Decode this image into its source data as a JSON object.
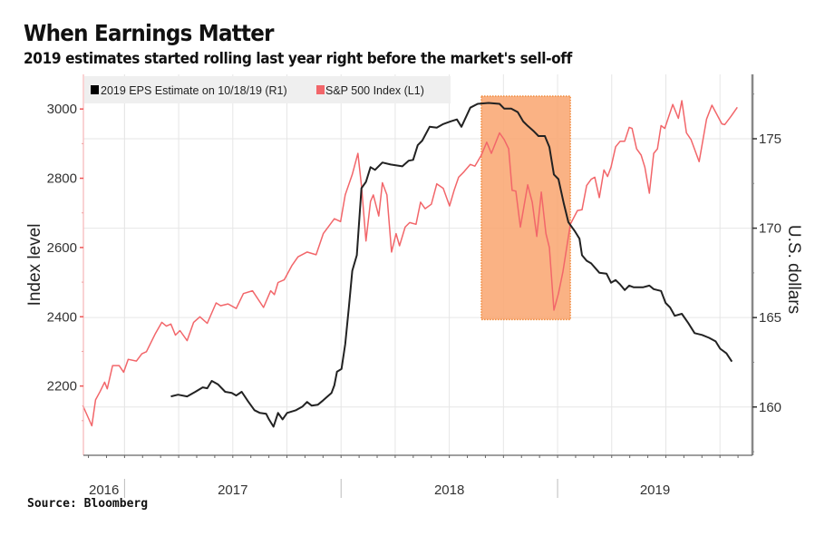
{
  "header": {
    "title": "When Earnings Matter",
    "subtitle": "2019 estimates started rolling last year right before the market's sell-off"
  },
  "footer": {
    "source": "Source: Bloomberg"
  },
  "colors": {
    "sp500": "#f2666a",
    "eps": "#222222",
    "highlight_fill": "#f9a56f",
    "highlight_border": "#f08a3c",
    "left_axis": "#f7b6b8",
    "right_axis": "#888888",
    "grid": "#e6e6e6",
    "legend_bg": "#efefef"
  },
  "chart_data": {
    "type": "line",
    "title": "When Earnings Matter",
    "subtitle": "2019 estimates started rolling last year right before the market's sell-off",
    "xlabel": "",
    "x_unit": "decimal year",
    "x_range": [
      2016.81,
      2019.9
    ],
    "x_ticks": [
      {
        "label": "2016",
        "start": 2016.81,
        "end": 2017.0
      },
      {
        "label": "2017",
        "start": 2017.0,
        "end": 2018.0
      },
      {
        "label": "2018",
        "start": 2018.0,
        "end": 2019.0
      },
      {
        "label": "2019",
        "start": 2019.0,
        "end": 2019.9
      }
    ],
    "y_left": {
      "label": "Index level",
      "range": [
        2000,
        3100
      ],
      "ticks": [
        2200,
        2400,
        2600,
        2800,
        3000
      ]
    },
    "y_right": {
      "label": "U.S. dollars",
      "range": [
        157.3,
        178.6
      ],
      "ticks": [
        160,
        165,
        170,
        175
      ]
    },
    "grid": true,
    "legend_position": "top-left",
    "legend": [
      {
        "label": "2019 EPS Estimate  on 10/18/19 (R1)",
        "series": "eps"
      },
      {
        "label": "S&P 500 Index  (L1)",
        "series": "sp500"
      }
    ],
    "highlight": {
      "x_start": 2018.648,
      "x_end": 2019.059,
      "y_top_left": 3037,
      "y_bottom_left": 2392
    },
    "series": [
      {
        "name": "S&P 500 Index (L1)",
        "key": "sp500",
        "axis": "left",
        "x": [
          2016.807,
          2016.849,
          2016.866,
          2016.887,
          2016.908,
          2016.92,
          2016.945,
          2016.975,
          2016.996,
          2017.017,
          2017.055,
          2017.08,
          2017.101,
          2017.143,
          2017.172,
          2017.193,
          2017.214,
          2017.235,
          2017.256,
          2017.289,
          2017.319,
          2017.348,
          2017.382,
          2017.423,
          2017.444,
          2017.478,
          2017.516,
          2017.549,
          2017.591,
          2017.642,
          2017.675,
          2017.692,
          2017.709,
          2017.738,
          2017.772,
          2017.801,
          2017.843,
          2017.885,
          2017.918,
          2017.969,
          2017.998,
          2018.019,
          2018.052,
          2018.078,
          2018.094,
          2018.115,
          2018.136,
          2018.149,
          2018.174,
          2018.191,
          2018.212,
          2018.233,
          2018.254,
          2018.27,
          2018.296,
          2018.317,
          2018.346,
          2018.367,
          2018.388,
          2018.417,
          2018.442,
          2018.472,
          2018.501,
          2018.522,
          2018.543,
          2018.568,
          2018.597,
          2018.618,
          2018.648,
          2018.673,
          2018.694,
          2018.732,
          2018.753,
          2018.774,
          2018.79,
          2018.807,
          2018.828,
          2018.862,
          2018.883,
          2018.904,
          2018.925,
          2018.946,
          2018.962,
          2018.983,
          2019.004,
          2019.025,
          2019.059,
          2019.092,
          2019.113,
          2019.134,
          2019.155,
          2019.172,
          2019.193,
          2019.214,
          2019.231,
          2019.247,
          2019.268,
          2019.289,
          2019.31,
          2019.331,
          2019.344,
          2019.365,
          2019.386,
          2019.403,
          2019.424,
          2019.444,
          2019.461,
          2019.478,
          2019.495,
          2019.532,
          2019.558,
          2019.574,
          2019.595,
          2019.616,
          2019.654,
          2019.688,
          2019.713,
          2019.759,
          2019.772,
          2019.801,
          2019.83
        ],
        "values": [
          2144,
          2085,
          2160,
          2184,
          2211,
          2192,
          2259,
          2259,
          2240,
          2277,
          2272,
          2293,
          2299,
          2352,
          2384,
          2373,
          2379,
          2347,
          2360,
          2331,
          2384,
          2400,
          2381,
          2440,
          2432,
          2437,
          2424,
          2467,
          2475,
          2427,
          2475,
          2464,
          2499,
          2507,
          2547,
          2573,
          2587,
          2579,
          2640,
          2683,
          2675,
          2752,
          2811,
          2872,
          2779,
          2619,
          2733,
          2752,
          2691,
          2787,
          2752,
          2587,
          2640,
          2605,
          2659,
          2672,
          2667,
          2731,
          2712,
          2725,
          2784,
          2771,
          2720,
          2765,
          2803,
          2819,
          2840,
          2835,
          2867,
          2904,
          2872,
          2931,
          2912,
          2885,
          2765,
          2763,
          2659,
          2781,
          2731,
          2632,
          2760,
          2640,
          2600,
          2419,
          2467,
          2531,
          2667,
          2707,
          2709,
          2779,
          2797,
          2803,
          2744,
          2824,
          2805,
          2832,
          2891,
          2907,
          2907,
          2947,
          2944,
          2885,
          2867,
          2832,
          2757,
          2872,
          2885,
          2952,
          2944,
          3013,
          2973,
          3024,
          2931,
          2912,
          2848,
          2971,
          3011,
          2957,
          2955,
          2979,
          3005
        ]
      },
      {
        "name": "2019 EPS Estimate on 10/18/19 (R1)",
        "key": "eps",
        "axis": "right",
        "x": [
          2017.214,
          2017.247,
          2017.289,
          2017.327,
          2017.361,
          2017.382,
          2017.403,
          2017.432,
          2017.465,
          2017.495,
          2017.516,
          2017.541,
          2017.57,
          2017.6,
          2017.625,
          2017.654,
          2017.667,
          2017.688,
          2017.709,
          2017.73,
          2017.751,
          2017.792,
          2017.822,
          2017.843,
          2017.864,
          2017.893,
          2017.918,
          2017.956,
          2017.969,
          2017.981,
          2018.002,
          2018.019,
          2018.036,
          2018.052,
          2018.073,
          2018.094,
          2018.115,
          2018.136,
          2018.157,
          2018.191,
          2018.229,
          2018.283,
          2018.312,
          2018.333,
          2018.354,
          2018.375,
          2018.409,
          2018.442,
          2018.472,
          2018.505,
          2018.535,
          2018.556,
          2018.597,
          2018.631,
          2018.681,
          2018.732,
          2018.753,
          2018.786,
          2018.816,
          2018.841,
          2018.862,
          2018.891,
          2018.912,
          2018.941,
          2018.962,
          2018.983,
          2019.004,
          2019.029,
          2019.05,
          2019.08,
          2019.101,
          2019.113,
          2019.134,
          2019.155,
          2019.193,
          2019.226,
          2019.247,
          2019.268,
          2019.289,
          2019.31,
          2019.331,
          2019.352,
          2019.394,
          2019.424,
          2019.444,
          2019.478,
          2019.499,
          2019.52,
          2019.541,
          2019.574,
          2019.604,
          2019.633,
          2019.667,
          2019.7,
          2019.73,
          2019.751,
          2019.78,
          2019.805
        ],
        "values": [
          160.59,
          160.69,
          160.59,
          160.85,
          161.1,
          161.05,
          161.46,
          161.26,
          160.85,
          160.79,
          160.64,
          160.85,
          160.33,
          159.82,
          159.67,
          159.62,
          159.31,
          158.9,
          159.67,
          159.31,
          159.67,
          159.82,
          160.03,
          160.28,
          160.08,
          160.13,
          160.38,
          160.79,
          161.21,
          161.97,
          162.13,
          163.51,
          165.56,
          167.62,
          168.49,
          172.23,
          172.59,
          173.41,
          173.26,
          173.67,
          173.56,
          173.46,
          173.77,
          173.82,
          174.64,
          174.9,
          175.67,
          175.62,
          175.82,
          175.97,
          176.08,
          175.67,
          176.74,
          176.95,
          177.0,
          176.95,
          176.69,
          176.69,
          176.49,
          175.97,
          175.72,
          175.41,
          175.15,
          175.15,
          174.54,
          173.0,
          172.74,
          171.36,
          170.33,
          169.82,
          169.41,
          168.49,
          168.18,
          168.03,
          167.51,
          167.46,
          166.95,
          167.1,
          166.85,
          166.54,
          166.79,
          166.69,
          166.69,
          166.79,
          166.59,
          166.49,
          165.82,
          165.56,
          165.1,
          165.21,
          164.69,
          164.13,
          164.03,
          163.87,
          163.67,
          163.26,
          163.0,
          162.54
        ]
      }
    ]
  }
}
